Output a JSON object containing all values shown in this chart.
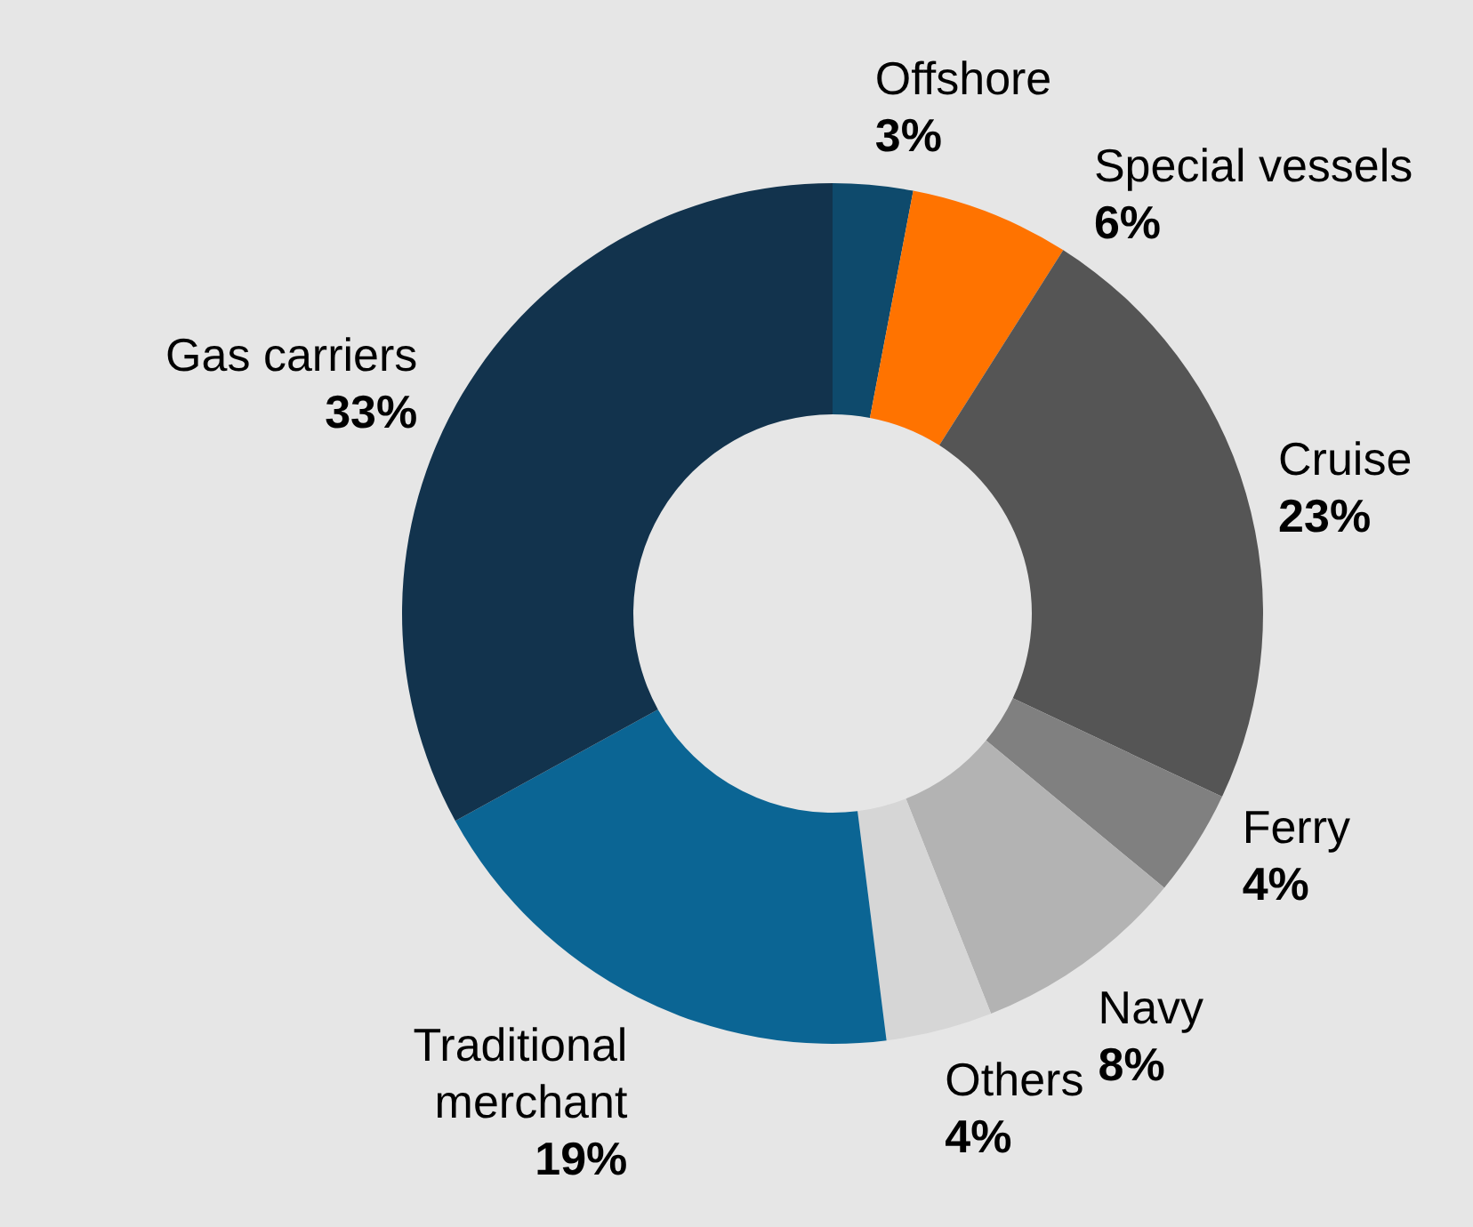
{
  "chart_data": {
    "type": "donut",
    "categories": [
      "Offshore",
      "Special vessels",
      "Cruise",
      "Ferry",
      "Navy",
      "Others",
      "Traditional\nmerchant",
      "Gas carriers"
    ],
    "values": [
      3,
      6,
      23,
      4,
      8,
      4,
      19,
      33
    ],
    "value_labels": [
      "3%",
      "6%",
      "23%",
      "4%",
      "8%",
      "4%",
      "19%",
      "33%"
    ],
    "colors": [
      "#0e4a6c",
      "#ff7300",
      "#555555",
      "#808080",
      "#b3b3b3",
      "#d6d6d6",
      "#0b6594",
      "#12334d"
    ],
    "legend": false
  }
}
